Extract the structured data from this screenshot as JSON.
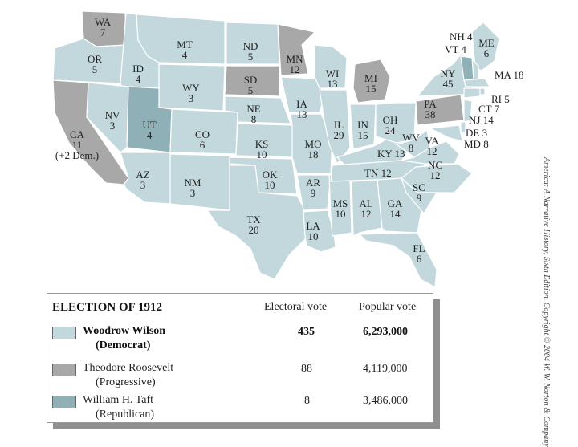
{
  "colors": {
    "wilson": "#c2d8dc",
    "roosevelt": "#a8a8a8",
    "taft": "#8fb0b7",
    "border": "#ffffff"
  },
  "states": [
    {
      "abbr": "WA",
      "ev": "7",
      "party": "roosevelt"
    },
    {
      "abbr": "OR",
      "ev": "5",
      "party": "wilson"
    },
    {
      "abbr": "CA",
      "ev": "11",
      "note": "(+2 Dem.)",
      "party": "roosevelt"
    },
    {
      "abbr": "ID",
      "ev": "4",
      "party": "wilson"
    },
    {
      "abbr": "NV",
      "ev": "3",
      "party": "wilson"
    },
    {
      "abbr": "MT",
      "ev": "4",
      "party": "wilson"
    },
    {
      "abbr": "WY",
      "ev": "3",
      "party": "wilson"
    },
    {
      "abbr": "UT",
      "ev": "4",
      "party": "taft"
    },
    {
      "abbr": "AZ",
      "ev": "3",
      "party": "wilson"
    },
    {
      "abbr": "CO",
      "ev": "6",
      "party": "wilson"
    },
    {
      "abbr": "NM",
      "ev": "3",
      "party": "wilson"
    },
    {
      "abbr": "ND",
      "ev": "5",
      "party": "wilson"
    },
    {
      "abbr": "SD",
      "ev": "5",
      "party": "roosevelt"
    },
    {
      "abbr": "NE",
      "ev": "8",
      "party": "wilson"
    },
    {
      "abbr": "KS",
      "ev": "10",
      "party": "wilson"
    },
    {
      "abbr": "OK",
      "ev": "10",
      "party": "wilson"
    },
    {
      "abbr": "TX",
      "ev": "20",
      "party": "wilson"
    },
    {
      "abbr": "MN",
      "ev": "12",
      "party": "roosevelt"
    },
    {
      "abbr": "IA",
      "ev": "13",
      "party": "wilson"
    },
    {
      "abbr": "MO",
      "ev": "18",
      "party": "wilson"
    },
    {
      "abbr": "AR",
      "ev": "9",
      "party": "wilson"
    },
    {
      "abbr": "LA",
      "ev": "10",
      "party": "wilson"
    },
    {
      "abbr": "WI",
      "ev": "13",
      "party": "wilson"
    },
    {
      "abbr": "IL",
      "ev": "29",
      "party": "wilson"
    },
    {
      "abbr": "MS",
      "ev": "10",
      "party": "wilson"
    },
    {
      "abbr": "MI",
      "ev": "15",
      "party": "roosevelt"
    },
    {
      "abbr": "IN",
      "ev": "15",
      "party": "wilson"
    },
    {
      "abbr": "KY",
      "ev": "13",
      "party": "wilson"
    },
    {
      "abbr": "TN",
      "ev": "12",
      "party": "wilson"
    },
    {
      "abbr": "AL",
      "ev": "12",
      "party": "wilson"
    },
    {
      "abbr": "GA",
      "ev": "14",
      "party": "wilson"
    },
    {
      "abbr": "FL",
      "ev": "6",
      "party": "wilson"
    },
    {
      "abbr": "OH",
      "ev": "24",
      "party": "wilson"
    },
    {
      "abbr": "WV",
      "ev": "8",
      "party": "wilson"
    },
    {
      "abbr": "VA",
      "ev": "12",
      "party": "wilson"
    },
    {
      "abbr": "NC",
      "ev": "12",
      "party": "wilson"
    },
    {
      "abbr": "SC",
      "ev": "9",
      "party": "wilson"
    },
    {
      "abbr": "PA",
      "ev": "38",
      "party": "roosevelt"
    },
    {
      "abbr": "NY",
      "ev": "45",
      "party": "wilson"
    },
    {
      "abbr": "ME",
      "ev": "6",
      "party": "wilson"
    },
    {
      "abbr": "NH",
      "ev": "4",
      "party": "wilson"
    },
    {
      "abbr": "VT",
      "ev": "4",
      "party": "taft"
    },
    {
      "abbr": "MA",
      "ev": "18",
      "party": "wilson"
    },
    {
      "abbr": "RI",
      "ev": "5",
      "party": "wilson"
    },
    {
      "abbr": "CT",
      "ev": "7",
      "party": "wilson"
    },
    {
      "abbr": "NJ",
      "ev": "14",
      "party": "wilson"
    },
    {
      "abbr": "DE",
      "ev": "3",
      "party": "wilson"
    },
    {
      "abbr": "MD",
      "ev": "8",
      "party": "wilson"
    }
  ],
  "legend": {
    "title": "ELECTION OF 1912",
    "col_electoral": "Electoral vote",
    "col_popular": "Popular vote",
    "rows": [
      {
        "name": "Woodrow Wilson",
        "party": "(Democrat)",
        "electoral": "435",
        "popular": "6,293,000"
      },
      {
        "name": "Theodore Roosevelt",
        "party": "(Progressive)",
        "electoral": "88",
        "popular": "4,119,000"
      },
      {
        "name": "William H. Taft",
        "party": "(Republican)",
        "electoral": "8",
        "popular": "3,486,000"
      }
    ]
  },
  "copyright": "America: A Narrative History, Sixth Edition. Copyright © 2004 W. W. Norton & Company"
}
